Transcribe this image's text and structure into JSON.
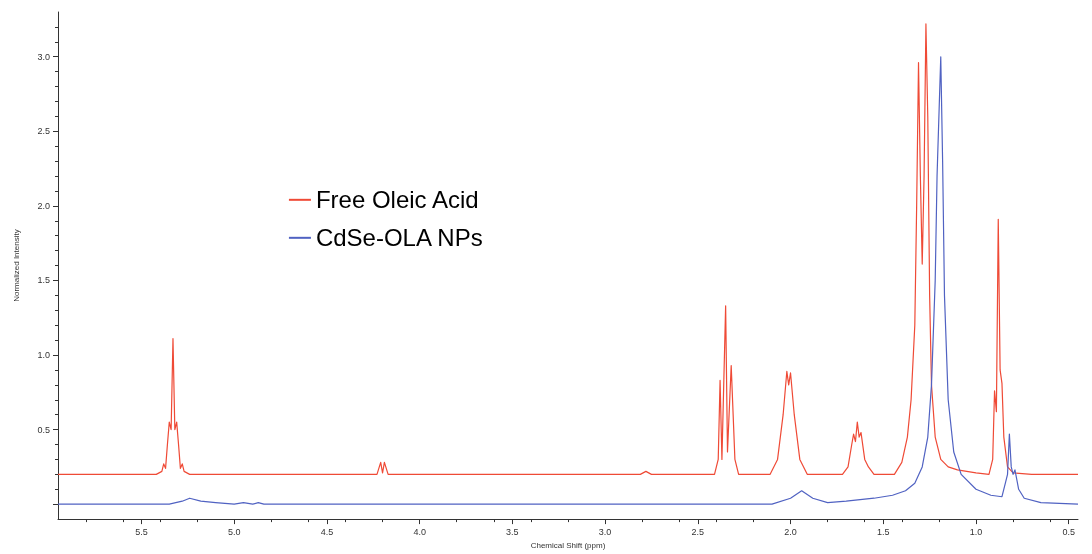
{
  "chart_data": {
    "type": "line",
    "xlabel": "Chemical Shift (ppm)",
    "ylabel": "Normalized Intensity",
    "xlim": [
      5.95,
      0.45
    ],
    "xticks": [
      5.5,
      {
        "value": 5,
        "label": "5.0"
      },
      4.5,
      {
        "value": 4,
        "label": "4.0"
      },
      3.5,
      {
        "value": 3,
        "label": "3.0"
      },
      2.5,
      {
        "value": 2,
        "label": "2.0"
      },
      1.5,
      {
        "value": 1,
        "label": "1.0"
      },
      0.5
    ],
    "ylim": [
      -0.1,
      3.3
    ],
    "yticks": [
      {
        "value": 0,
        "label": null
      },
      0.5,
      {
        "value": 1,
        "label": "1.0"
      },
      1.5,
      {
        "value": 2,
        "label": "2.0"
      },
      2.5,
      {
        "value": 3,
        "label": "3.0"
      }
    ],
    "grid": false,
    "legend": "left",
    "marker": "none",
    "line_style": "solid",
    "series": [
      {
        "name": "Free Oleic Acid",
        "color": "#ef4a36",
        "x": [
          5.95,
          5.42,
          5.39,
          5.38,
          5.37,
          5.36,
          5.35,
          5.34,
          5.33,
          5.32,
          5.31,
          5.3,
          5.29,
          5.28,
          5.27,
          5.24,
          4.23,
          4.21,
          4.2,
          4.19,
          4.17,
          2.81,
          2.78,
          2.75,
          2.41,
          2.39,
          2.38,
          2.37,
          2.35,
          2.34,
          2.32,
          2.3,
          2.28,
          2.11,
          2.07,
          2.04,
          2.02,
          2.01,
          2.0,
          1.98,
          1.95,
          1.91,
          1.72,
          1.69,
          1.67,
          1.66,
          1.65,
          1.64,
          1.63,
          1.62,
          1.6,
          1.58,
          1.55,
          1.44,
          1.4,
          1.37,
          1.35,
          1.33,
          1.32,
          1.31,
          1.3,
          1.29,
          1.28,
          1.27,
          1.26,
          1.25,
          1.24,
          1.22,
          1.19,
          1.15,
          1.1,
          1.0,
          0.93,
          0.91,
          0.9,
          0.89,
          0.88,
          0.87,
          0.86,
          0.85,
          0.83,
          0.8,
          0.7,
          0.45
        ],
        "values": [
          0.2,
          0.2,
          0.22,
          0.27,
          0.24,
          0.4,
          0.55,
          0.5,
          1.11,
          0.5,
          0.55,
          0.4,
          0.24,
          0.27,
          0.22,
          0.2,
          0.2,
          0.28,
          0.21,
          0.28,
          0.2,
          0.2,
          0.22,
          0.2,
          0.2,
          0.3,
          0.83,
          0.3,
          1.33,
          0.35,
          0.93,
          0.3,
          0.2,
          0.2,
          0.3,
          0.6,
          0.89,
          0.8,
          0.88,
          0.6,
          0.3,
          0.2,
          0.2,
          0.25,
          0.4,
          0.47,
          0.42,
          0.55,
          0.45,
          0.48,
          0.3,
          0.25,
          0.2,
          0.2,
          0.28,
          0.45,
          0.7,
          1.2,
          2.0,
          2.96,
          2.2,
          1.61,
          2.2,
          3.22,
          2.6,
          1.4,
          0.8,
          0.45,
          0.3,
          0.25,
          0.23,
          0.21,
          0.2,
          0.3,
          0.76,
          0.62,
          1.91,
          0.9,
          0.81,
          0.45,
          0.25,
          0.21,
          0.2,
          0.2
        ]
      },
      {
        "name": "CdSe-OLA NPs",
        "color": "#5062c2",
        "x": [
          5.95,
          5.35,
          5.28,
          5.24,
          5.18,
          5.1,
          5.0,
          4.95,
          4.9,
          4.87,
          4.84,
          2.1,
          2.0,
          1.94,
          1.88,
          1.8,
          1.7,
          1.55,
          1.45,
          1.38,
          1.33,
          1.29,
          1.26,
          1.24,
          1.22,
          1.21,
          1.19,
          1.18,
          1.17,
          1.15,
          1.12,
          1.08,
          1.0,
          0.92,
          0.86,
          0.84,
          0.83,
          0.82,
          0.81,
          0.8,
          0.79,
          0.77,
          0.74,
          0.65,
          0.45
        ],
        "values": [
          0,
          0,
          0.02,
          0.04,
          0.02,
          0.01,
          0,
          0.01,
          0,
          0.01,
          0,
          0,
          0.04,
          0.09,
          0.04,
          0.01,
          0.02,
          0.04,
          0.06,
          0.09,
          0.14,
          0.25,
          0.45,
          0.8,
          1.5,
          2.2,
          3.0,
          2.3,
          1.4,
          0.7,
          0.35,
          0.2,
          0.1,
          0.06,
          0.05,
          0.15,
          0.2,
          0.47,
          0.25,
          0.2,
          0.23,
          0.1,
          0.04,
          0.01,
          0
        ]
      }
    ]
  }
}
